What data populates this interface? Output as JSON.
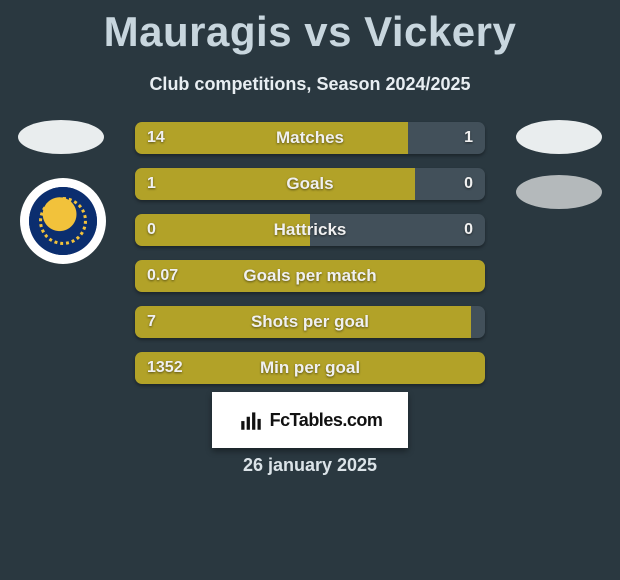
{
  "title_left": "Mauragis",
  "title_vs": "vs",
  "title_right": "Vickery",
  "subtitle": "Club competitions, Season 2024/2025",
  "colors": {
    "bg": "#2a3840",
    "bar_left": "#b2a228",
    "bar_right": "#42505a",
    "title": "#c8d6de"
  },
  "bars": [
    {
      "label": "Matches",
      "left": "14",
      "right": "1",
      "left_pct": 78
    },
    {
      "label": "Goals",
      "left": "1",
      "right": "0",
      "left_pct": 80
    },
    {
      "label": "Hattricks",
      "left": "0",
      "right": "0",
      "left_pct": 50
    },
    {
      "label": "Goals per match",
      "left": "0.07",
      "right": "",
      "left_pct": 100
    },
    {
      "label": "Shots per goal",
      "left": "7",
      "right": "",
      "left_pct": 96
    },
    {
      "label": "Min per goal",
      "left": "1352",
      "right": "",
      "left_pct": 100
    }
  ],
  "brand": "FcTables.com",
  "date": "26 january 2025"
}
